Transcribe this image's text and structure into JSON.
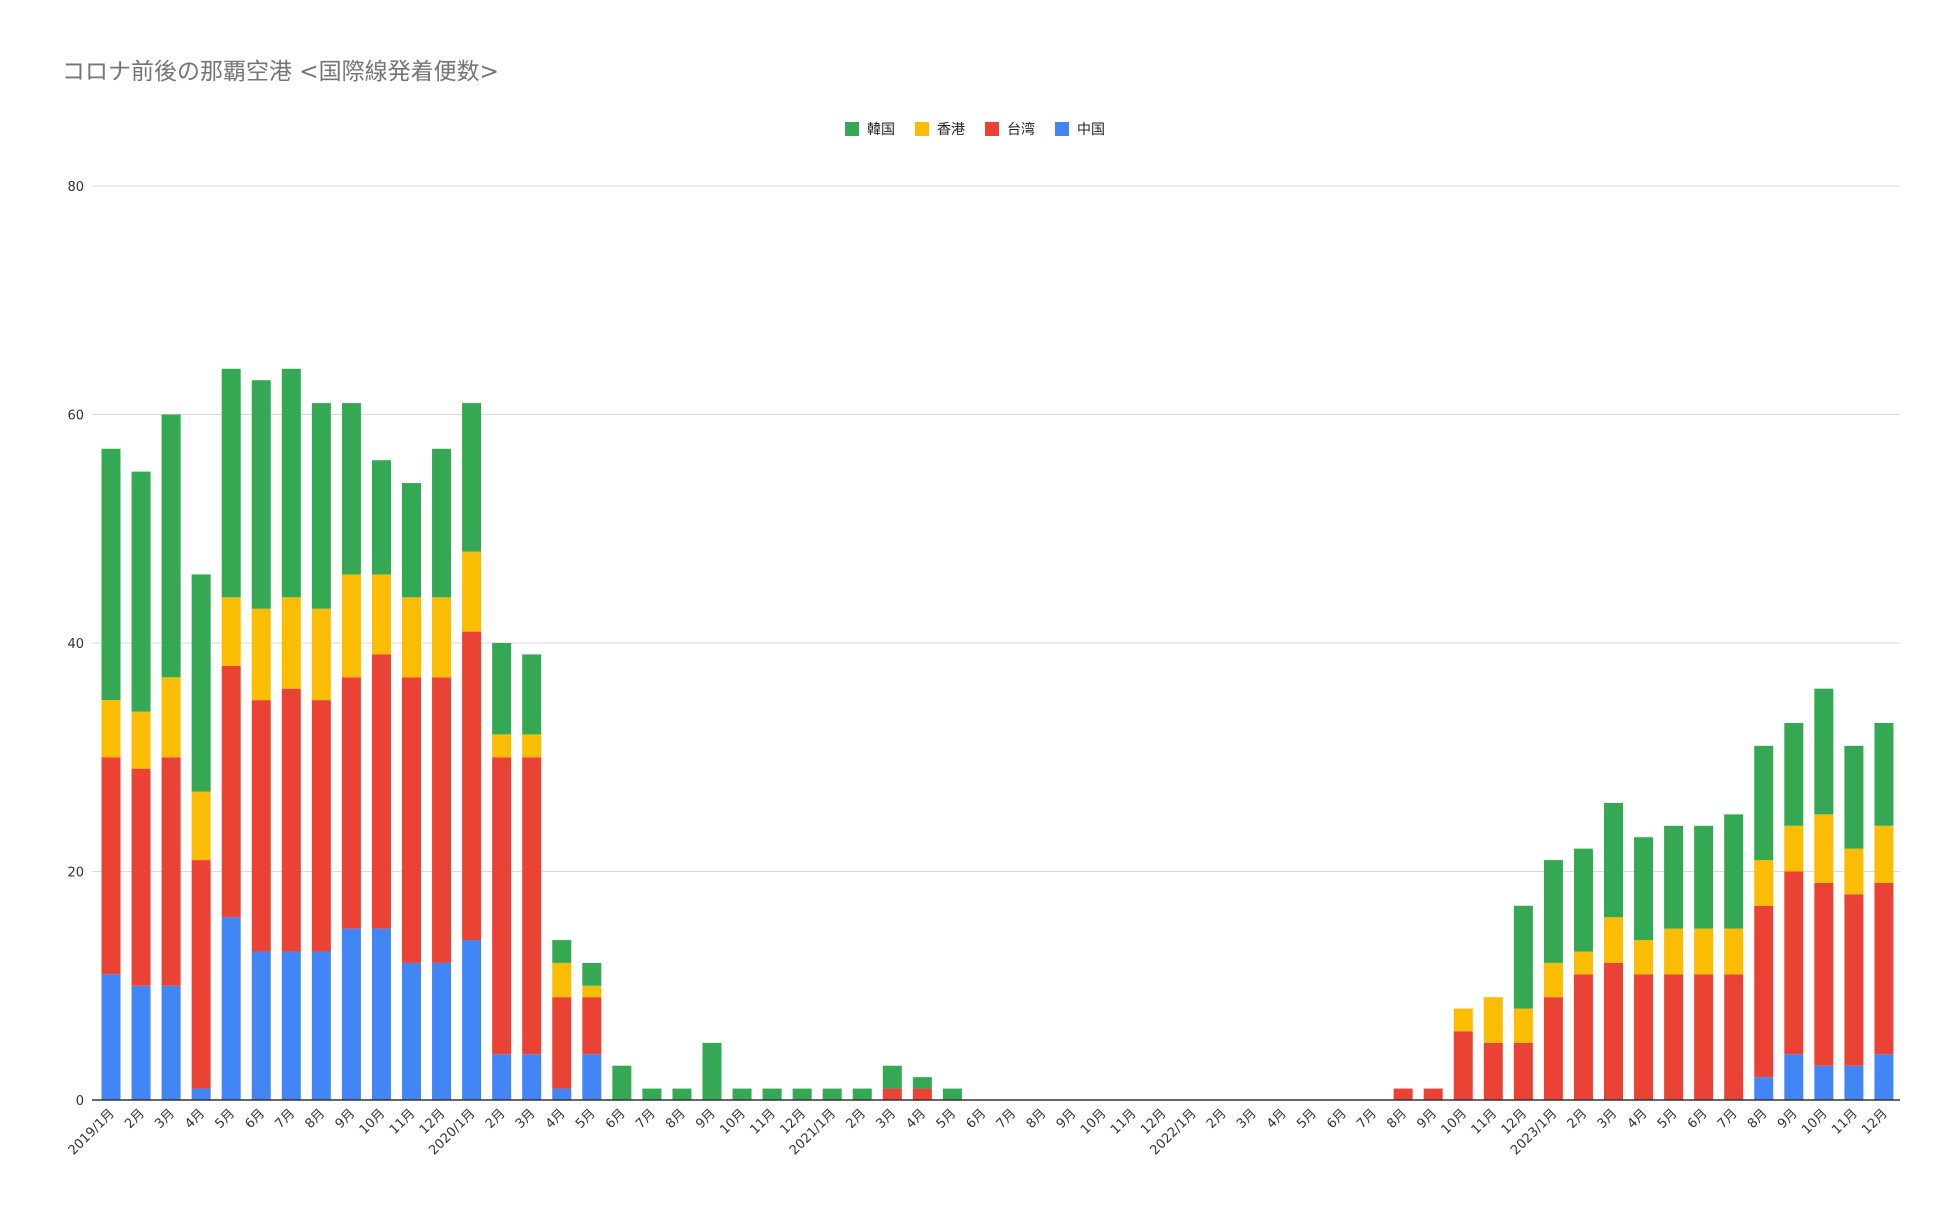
{
  "chart_data": {
    "type": "bar",
    "stacked": true,
    "title": "コロナ前後の那覇空港 <国際線発着便数>",
    "xlabel": "",
    "ylabel": "",
    "ylim": [
      0,
      80
    ],
    "yticks": [
      0,
      20,
      40,
      60,
      80
    ],
    "grid": true,
    "legend_position": "top-center",
    "legend_order": [
      "韓国",
      "香港",
      "台湾",
      "中国"
    ],
    "categories": [
      "2019/1月",
      "2月",
      "3月",
      "4月",
      "5月",
      "6月",
      "7月",
      "8月",
      "9月",
      "10月",
      "11月",
      "12月",
      "2020/1月",
      "2月",
      "3月",
      "4月",
      "5月",
      "6月",
      "7月",
      "8月",
      "9月",
      "10月",
      "11月",
      "12月",
      "2021/1月",
      "2月",
      "3月",
      "4月",
      "5月",
      "6月",
      "7月",
      "8月",
      "9月",
      "10月",
      "11月",
      "12月",
      "2022/1月",
      "2月",
      "3月",
      "4月",
      "5月",
      "6月",
      "7月",
      "8月",
      "9月",
      "10月",
      "11月",
      "12月",
      "2023/1月",
      "2月",
      "3月",
      "4月",
      "5月",
      "6月",
      "7月",
      "8月",
      "9月",
      "10月",
      "11月",
      "12月"
    ],
    "series": [
      {
        "name": "中国",
        "color": "#4285F4",
        "values": [
          11,
          10,
          10,
          1,
          16,
          13,
          13,
          13,
          15,
          15,
          12,
          12,
          14,
          4,
          4,
          1,
          4,
          0,
          0,
          0,
          0,
          0,
          0,
          0,
          0,
          0,
          0,
          0,
          0,
          0,
          0,
          0,
          0,
          0,
          0,
          0,
          0,
          0,
          0,
          0,
          0,
          0,
          0,
          0,
          0,
          0,
          0,
          0,
          0,
          0,
          0,
          0,
          0,
          0,
          0,
          2,
          4,
          3,
          3,
          4
        ]
      },
      {
        "name": "台湾",
        "color": "#EA4335",
        "values": [
          19,
          19,
          20,
          20,
          22,
          22,
          23,
          22,
          22,
          24,
          25,
          25,
          27,
          26,
          26,
          8,
          5,
          0,
          0,
          0,
          0,
          0,
          0,
          0,
          0,
          0,
          1,
          1,
          0,
          0,
          0,
          0,
          0,
          0,
          0,
          0,
          0,
          0,
          0,
          0,
          0,
          0,
          0,
          1,
          1,
          6,
          5,
          5,
          9,
          11,
          12,
          11,
          11,
          11,
          11,
          15,
          16,
          16,
          15,
          15
        ]
      },
      {
        "name": "香港",
        "color": "#FBBC04",
        "values": [
          5,
          5,
          7,
          6,
          6,
          8,
          8,
          8,
          9,
          7,
          7,
          7,
          7,
          2,
          2,
          3,
          1,
          0,
          0,
          0,
          0,
          0,
          0,
          0,
          0,
          0,
          0,
          0,
          0,
          0,
          0,
          0,
          0,
          0,
          0,
          0,
          0,
          0,
          0,
          0,
          0,
          0,
          0,
          0,
          0,
          2,
          4,
          3,
          3,
          2,
          4,
          3,
          4,
          4,
          4,
          4,
          4,
          6,
          4,
          5
        ]
      },
      {
        "name": "韓国",
        "color": "#34A853",
        "values": [
          22,
          21,
          23,
          19,
          20,
          20,
          20,
          18,
          15,
          10,
          10,
          13,
          13,
          8,
          7,
          2,
          2,
          3,
          1,
          1,
          5,
          1,
          1,
          1,
          1,
          1,
          2,
          1,
          1,
          0,
          0,
          0,
          0,
          0,
          0,
          0,
          0,
          0,
          0,
          0,
          0,
          0,
          0,
          0,
          0,
          0,
          0,
          9,
          9,
          9,
          10,
          9,
          9,
          9,
          10,
          10,
          9,
          11,
          9,
          9
        ]
      }
    ]
  }
}
